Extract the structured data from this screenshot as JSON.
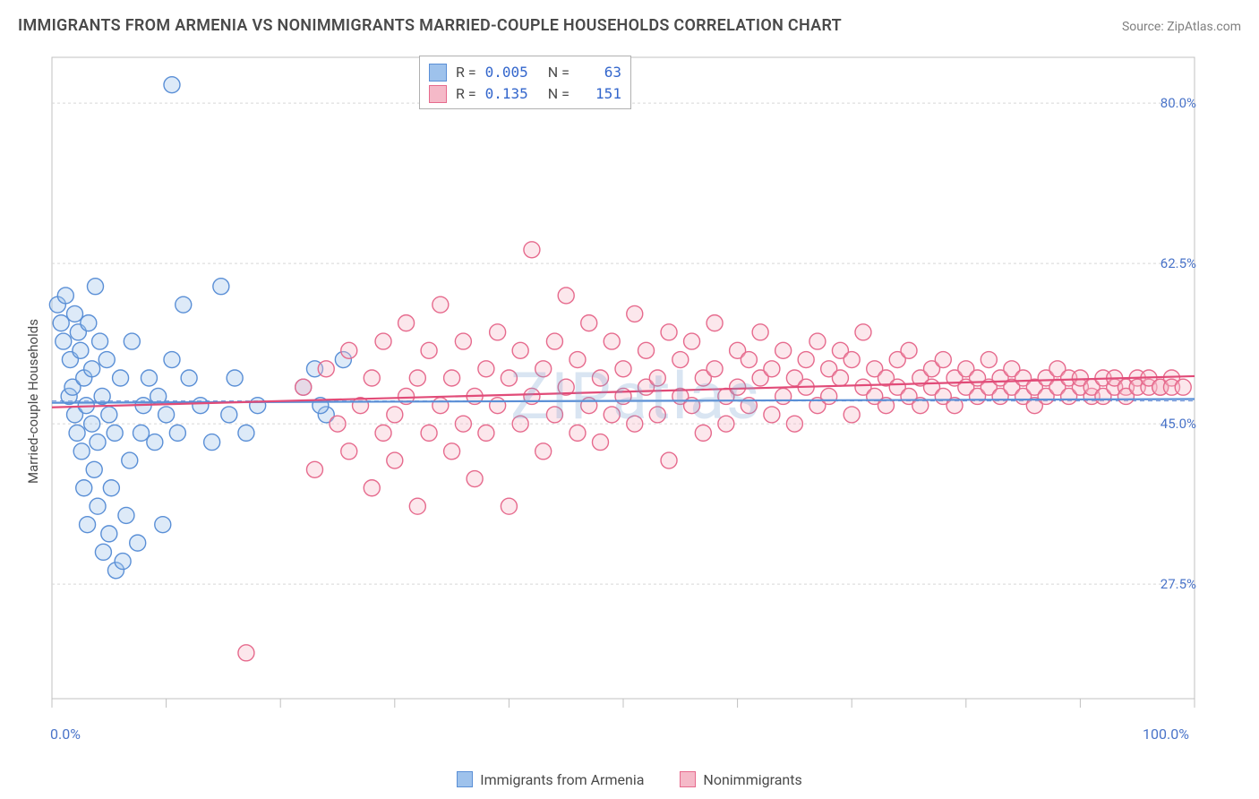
{
  "title": "IMMIGRANTS FROM ARMENIA VS NONIMMIGRANTS MARRIED-COUPLE HOUSEHOLDS CORRELATION CHART",
  "source": "Source: ZipAtlas.com",
  "watermark": "ZIPatlas",
  "y_axis_label": "Married-couple Households",
  "chart": {
    "type": "scatter",
    "xlim": [
      0,
      100
    ],
    "ylim": [
      15,
      85
    ],
    "x_ticks_major": [
      0,
      100
    ],
    "x_ticks_major_labels": [
      "0.0%",
      "100.0%"
    ],
    "x_ticks_minor": [
      10,
      20,
      30,
      40,
      50,
      60,
      70,
      80,
      90
    ],
    "y_gridlines": [
      27.5,
      45.0,
      62.5,
      80.0
    ],
    "y_gridline_labels": [
      "27.5%",
      "45.0%",
      "62.5%",
      "80.0%"
    ],
    "y_ref_line": 47.5,
    "background_color": "#ffffff",
    "grid_color": "#d8d8d8",
    "ref_line_color": "#6a8fd8",
    "axis_line_color": "#c0c0c0",
    "marker_radius": 9,
    "marker_stroke_width": 1.4,
    "marker_fill_opacity": 0.35,
    "trend_line_width": 2.2,
    "series": [
      {
        "key": "immigrants",
        "name": "Immigrants from Armenia",
        "color_fill": "#9ec2ec",
        "color_stroke": "#5a8fd6",
        "trend_color": "#5a8fd6",
        "R": "0.005",
        "N": "63",
        "trend": {
          "x0": 0,
          "y0": 47.3,
          "x1": 100,
          "y1": 47.7
        },
        "points": [
          [
            0.5,
            58
          ],
          [
            0.8,
            56
          ],
          [
            1.0,
            54
          ],
          [
            1.2,
            59
          ],
          [
            1.5,
            48
          ],
          [
            1.6,
            52
          ],
          [
            1.8,
            49
          ],
          [
            2.0,
            46
          ],
          [
            2.0,
            57
          ],
          [
            2.2,
            44
          ],
          [
            2.3,
            55
          ],
          [
            2.5,
            53
          ],
          [
            2.6,
            42
          ],
          [
            2.8,
            50
          ],
          [
            2.8,
            38
          ],
          [
            3.0,
            47
          ],
          [
            3.1,
            34
          ],
          [
            3.2,
            56
          ],
          [
            3.5,
            45
          ],
          [
            3.5,
            51
          ],
          [
            3.7,
            40
          ],
          [
            3.8,
            60
          ],
          [
            4.0,
            43
          ],
          [
            4.0,
            36
          ],
          [
            4.2,
            54
          ],
          [
            4.4,
            48
          ],
          [
            4.5,
            31
          ],
          [
            4.8,
            52
          ],
          [
            5.0,
            33
          ],
          [
            5.0,
            46
          ],
          [
            5.2,
            38
          ],
          [
            5.5,
            44
          ],
          [
            5.6,
            29
          ],
          [
            6.0,
            50
          ],
          [
            6.2,
            30
          ],
          [
            6.5,
            35
          ],
          [
            6.8,
            41
          ],
          [
            7.0,
            54
          ],
          [
            7.5,
            32
          ],
          [
            7.8,
            44
          ],
          [
            8.0,
            47
          ],
          [
            8.5,
            50
          ],
          [
            9.0,
            43
          ],
          [
            9.3,
            48
          ],
          [
            9.7,
            34
          ],
          [
            10.0,
            46
          ],
          [
            10.5,
            52
          ],
          [
            11.0,
            44
          ],
          [
            11.5,
            58
          ],
          [
            12.0,
            50
          ],
          [
            13.0,
            47
          ],
          [
            14.0,
            43
          ],
          [
            14.8,
            60
          ],
          [
            15.5,
            46
          ],
          [
            16.0,
            50
          ],
          [
            17.0,
            44
          ],
          [
            18.0,
            47
          ],
          [
            22.0,
            49
          ],
          [
            23.0,
            51
          ],
          [
            24.0,
            46
          ],
          [
            25.5,
            52
          ],
          [
            10.5,
            82
          ],
          [
            23.5,
            47
          ]
        ]
      },
      {
        "key": "nonimmigrants",
        "name": "Nonimmigrants",
        "color_fill": "#f5b9c8",
        "color_stroke": "#e66a8d",
        "trend_color": "#e14b78",
        "R": "0.135",
        "N": "151",
        "trend": {
          "x0": 0,
          "y0": 46.8,
          "x1": 100,
          "y1": 50.2
        },
        "points": [
          [
            17,
            20
          ],
          [
            22,
            49
          ],
          [
            23,
            40
          ],
          [
            24,
            51
          ],
          [
            25,
            45
          ],
          [
            26,
            53
          ],
          [
            26,
            42
          ],
          [
            27,
            47
          ],
          [
            28,
            50
          ],
          [
            28,
            38
          ],
          [
            29,
            44
          ],
          [
            29,
            54
          ],
          [
            30,
            46
          ],
          [
            30,
            41
          ],
          [
            31,
            48
          ],
          [
            31,
            56
          ],
          [
            32,
            36
          ],
          [
            32,
            50
          ],
          [
            33,
            44
          ],
          [
            33,
            53
          ],
          [
            34,
            47
          ],
          [
            34,
            58
          ],
          [
            35,
            42
          ],
          [
            35,
            50
          ],
          [
            36,
            45
          ],
          [
            36,
            54
          ],
          [
            37,
            48
          ],
          [
            37,
            39
          ],
          [
            38,
            51
          ],
          [
            38,
            44
          ],
          [
            39,
            55
          ],
          [
            39,
            47
          ],
          [
            40,
            50
          ],
          [
            40,
            36
          ],
          [
            41,
            53
          ],
          [
            41,
            45
          ],
          [
            42,
            48
          ],
          [
            42,
            64
          ],
          [
            43,
            51
          ],
          [
            43,
            42
          ],
          [
            44,
            46
          ],
          [
            44,
            54
          ],
          [
            45,
            49
          ],
          [
            45,
            59
          ],
          [
            46,
            44
          ],
          [
            46,
            52
          ],
          [
            47,
            47
          ],
          [
            47,
            56
          ],
          [
            48,
            50
          ],
          [
            48,
            43
          ],
          [
            49,
            54
          ],
          [
            49,
            46
          ],
          [
            50,
            51
          ],
          [
            50,
            48
          ],
          [
            51,
            45
          ],
          [
            51,
            57
          ],
          [
            52,
            49
          ],
          [
            52,
            53
          ],
          [
            53,
            46
          ],
          [
            53,
            50
          ],
          [
            54,
            55
          ],
          [
            54,
            41
          ],
          [
            55,
            48
          ],
          [
            55,
            52
          ],
          [
            56,
            47
          ],
          [
            56,
            54
          ],
          [
            57,
            50
          ],
          [
            57,
            44
          ],
          [
            58,
            51
          ],
          [
            58,
            56
          ],
          [
            59,
            48
          ],
          [
            59,
            45
          ],
          [
            60,
            53
          ],
          [
            60,
            49
          ],
          [
            61,
            47
          ],
          [
            61,
            52
          ],
          [
            62,
            50
          ],
          [
            62,
            55
          ],
          [
            63,
            46
          ],
          [
            63,
            51
          ],
          [
            64,
            48
          ],
          [
            64,
            53
          ],
          [
            65,
            50
          ],
          [
            65,
            45
          ],
          [
            66,
            52
          ],
          [
            66,
            49
          ],
          [
            67,
            47
          ],
          [
            67,
            54
          ],
          [
            68,
            51
          ],
          [
            68,
            48
          ],
          [
            69,
            50
          ],
          [
            69,
            53
          ],
          [
            70,
            46
          ],
          [
            70,
            52
          ],
          [
            71,
            49
          ],
          [
            71,
            55
          ],
          [
            72,
            48
          ],
          [
            72,
            51
          ],
          [
            73,
            50
          ],
          [
            73,
            47
          ],
          [
            74,
            52
          ],
          [
            74,
            49
          ],
          [
            75,
            48
          ],
          [
            75,
            53
          ],
          [
            76,
            50
          ],
          [
            76,
            47
          ],
          [
            77,
            51
          ],
          [
            77,
            49
          ],
          [
            78,
            48
          ],
          [
            78,
            52
          ],
          [
            79,
            50
          ],
          [
            79,
            47
          ],
          [
            80,
            49
          ],
          [
            80,
            51
          ],
          [
            81,
            48
          ],
          [
            81,
            50
          ],
          [
            82,
            49
          ],
          [
            82,
            52
          ],
          [
            83,
            48
          ],
          [
            83,
            50
          ],
          [
            84,
            49
          ],
          [
            84,
            51
          ],
          [
            85,
            48
          ],
          [
            85,
            50
          ],
          [
            86,
            49
          ],
          [
            86,
            47
          ],
          [
            87,
            50
          ],
          [
            87,
            48
          ],
          [
            88,
            49
          ],
          [
            88,
            51
          ],
          [
            89,
            48
          ],
          [
            89,
            50
          ],
          [
            90,
            49
          ],
          [
            90,
            50
          ],
          [
            91,
            48
          ],
          [
            91,
            49
          ],
          [
            92,
            50
          ],
          [
            92,
            48
          ],
          [
            93,
            49
          ],
          [
            93,
            50
          ],
          [
            94,
            49
          ],
          [
            94,
            48
          ],
          [
            95,
            50
          ],
          [
            95,
            49
          ],
          [
            96,
            49
          ],
          [
            96,
            50
          ],
          [
            97,
            49
          ],
          [
            97,
            49
          ],
          [
            98,
            50
          ],
          [
            98,
            49
          ],
          [
            99,
            49
          ]
        ]
      }
    ]
  },
  "top_legend": {
    "rows": [
      {
        "series": "immigrants",
        "r_label": "R =",
        "r_val": "0.005",
        "n_label": "N =",
        "n_val": "63"
      },
      {
        "series": "nonimmigrants",
        "r_label": "R =",
        "r_val": "0.135",
        "n_label": "N =",
        "n_val": "151"
      }
    ]
  }
}
